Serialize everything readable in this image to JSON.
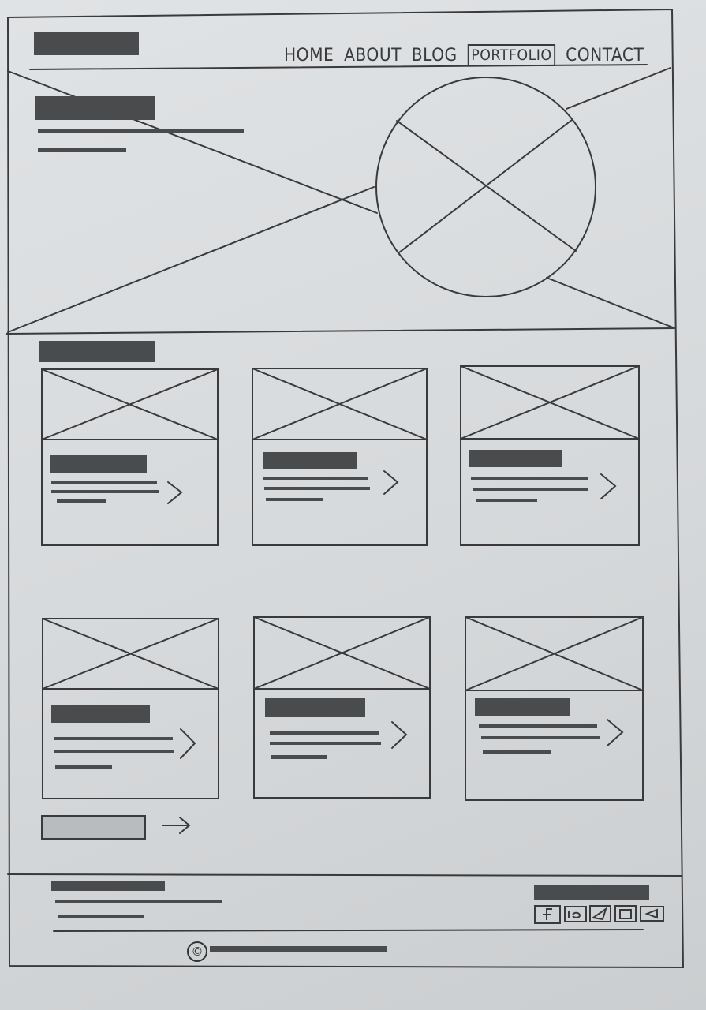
{
  "nav": {
    "items": [
      {
        "label": "HOME",
        "active": false
      },
      {
        "label": "ABOUT",
        "active": false
      },
      {
        "label": "BLOG",
        "active": false
      },
      {
        "label": "PORTFOLIO",
        "active": true
      },
      {
        "label": "CONTACT",
        "active": false
      }
    ]
  },
  "footer": {
    "copyright_symbol": "©",
    "social_icons": [
      "facebook-icon",
      "behance-icon",
      "telegram-icon",
      "instagram-icon",
      "youtube-icon"
    ]
  },
  "colors": {
    "paper": "#dcdfe1",
    "pencil": "#3a3a3c",
    "fill_dark": "#4a4b4c",
    "fill_light": "#b9bcbe"
  }
}
